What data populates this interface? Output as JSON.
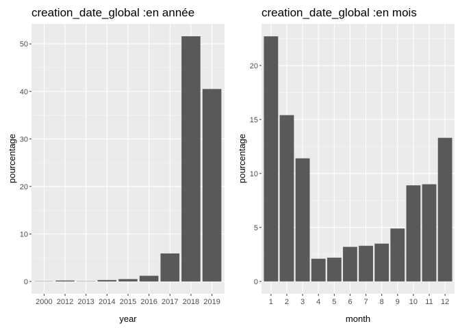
{
  "chart_data": [
    {
      "type": "bar",
      "title": "creation_date_global :en année",
      "xlabel": "year",
      "ylabel": "pourcentage",
      "categories": [
        "2000",
        "2012",
        "2013",
        "2014",
        "2015",
        "2016",
        "2017",
        "2018",
        "2019"
      ],
      "values": [
        0.05,
        0.2,
        0.05,
        0.3,
        0.5,
        1.2,
        5.9,
        51.6,
        40.5
      ],
      "y_ticks": [
        0,
        10,
        20,
        30,
        40,
        50
      ],
      "ylim": [
        -2.6,
        54.2
      ],
      "grid": true,
      "bar_color": "#595959",
      "panel_color": "#ebebeb"
    },
    {
      "type": "bar",
      "title": "creation_date_global :en mois",
      "xlabel": "month",
      "ylabel": "pourcentage",
      "categories": [
        "1",
        "2",
        "3",
        "4",
        "5",
        "6",
        "7",
        "8",
        "9",
        "10",
        "11",
        "12"
      ],
      "values": [
        22.7,
        15.4,
        11.4,
        2.1,
        2.2,
        3.2,
        3.3,
        3.5,
        4.9,
        8.9,
        9.0,
        13.3
      ],
      "y_ticks": [
        0,
        5,
        10,
        15,
        20
      ],
      "ylim": [
        -1.15,
        23.85
      ],
      "grid": true,
      "bar_color": "#595959",
      "panel_color": "#ebebeb"
    }
  ]
}
